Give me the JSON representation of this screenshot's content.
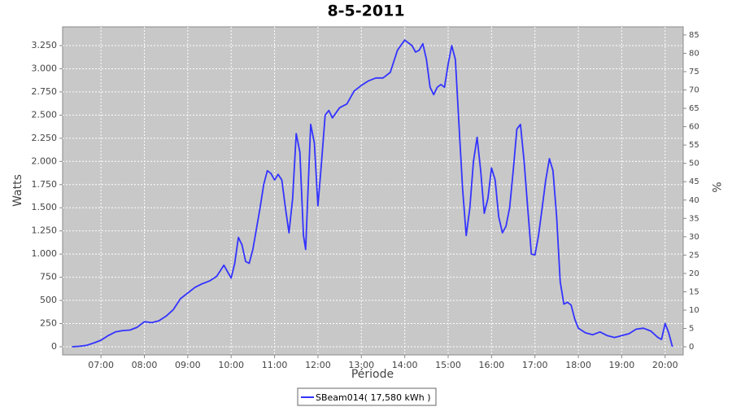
{
  "chart_data": {
    "type": "line",
    "title": "8-5-2011",
    "x_label": "Période",
    "y_label": "Watts",
    "y2_label": "%",
    "x": [
      "06:20",
      "06:30",
      "06:40",
      "06:50",
      "07:00",
      "07:10",
      "07:20",
      "07:30",
      "07:40",
      "07:50",
      "08:00",
      "08:10",
      "08:20",
      "08:30",
      "08:40",
      "08:50",
      "09:00",
      "09:10",
      "09:20",
      "09:30",
      "09:40",
      "09:50",
      "10:00",
      "10:05",
      "10:10",
      "10:15",
      "10:20",
      "10:25",
      "10:30",
      "10:40",
      "10:45",
      "10:50",
      "10:55",
      "11:00",
      "11:05",
      "11:10",
      "11:15",
      "11:20",
      "11:25",
      "11:30",
      "11:35",
      "11:40",
      "11:43",
      "11:50",
      "11:55",
      "12:00",
      "12:05",
      "12:10",
      "12:15",
      "12:20",
      "12:30",
      "12:40",
      "12:50",
      "13:00",
      "13:10",
      "13:20",
      "13:30",
      "13:40",
      "13:50",
      "14:00",
      "14:10",
      "14:15",
      "14:20",
      "14:25",
      "14:30",
      "14:35",
      "14:40",
      "14:45",
      "14:50",
      "14:55",
      "15:00",
      "15:05",
      "15:10",
      "15:15",
      "15:20",
      "15:25",
      "15:30",
      "15:35",
      "15:40",
      "15:45",
      "15:50",
      "15:55",
      "16:00",
      "16:05",
      "16:10",
      "16:15",
      "16:20",
      "16:25",
      "16:30",
      "16:35",
      "16:40",
      "16:45",
      "16:50",
      "16:55",
      "17:00",
      "17:05",
      "17:10",
      "17:15",
      "17:20",
      "17:25",
      "17:30",
      "17:35",
      "17:40",
      "17:45",
      "17:50",
      "17:55",
      "18:00",
      "18:10",
      "18:20",
      "18:30",
      "18:40",
      "18:50",
      "19:00",
      "19:10",
      "19:20",
      "19:30",
      "19:40",
      "19:50",
      "19:55",
      "20:00",
      "20:05",
      "20:10"
    ],
    "series": [
      {
        "name": "SBeam014( 17,580 kWh )",
        "color": "#3333ff",
        "values": [
          0,
          5,
          15,
          40,
          70,
          120,
          160,
          175,
          180,
          210,
          270,
          260,
          280,
          330,
          400,
          520,
          580,
          640,
          680,
          710,
          760,
          880,
          740,
          900,
          1180,
          1100,
          920,
          900,
          1050,
          1500,
          1750,
          1900,
          1870,
          1800,
          1860,
          1800,
          1500,
          1230,
          1600,
          2300,
          2100,
          1200,
          1050,
          2400,
          2200,
          1520,
          2000,
          2500,
          2550,
          2470,
          2580,
          2620,
          2760,
          2820,
          2870,
          2900,
          2900,
          2960,
          3200,
          3310,
          3250,
          3180,
          3200,
          3270,
          3100,
          2800,
          2720,
          2800,
          2830,
          2800,
          3050,
          3250,
          3100,
          2400,
          1700,
          1200,
          1500,
          2000,
          2260,
          1900,
          1440,
          1600,
          1930,
          1800,
          1400,
          1230,
          1300,
          1500,
          1900,
          2350,
          2400,
          2000,
          1500,
          1000,
          990,
          1200,
          1500,
          1800,
          2030,
          1900,
          1400,
          700,
          460,
          480,
          450,
          300,
          200,
          150,
          130,
          160,
          120,
          100,
          120,
          140,
          190,
          200,
          170,
          100,
          80,
          250,
          150,
          0
        ]
      }
    ],
    "xlim": [
      "06:07",
      "20:25"
    ],
    "xticks": [
      "07:00",
      "08:00",
      "09:00",
      "10:00",
      "11:00",
      "12:00",
      "13:00",
      "14:00",
      "15:00",
      "16:00",
      "17:00",
      "18:00",
      "19:00",
      "20:00"
    ],
    "ylim": [
      -88,
      3452
    ],
    "yticks": [
      0,
      250,
      500,
      750,
      {
        "value": 1000,
        "label": "1.000"
      },
      {
        "value": 1250,
        "label": "1.250"
      },
      {
        "value": 1500,
        "label": "1.500"
      },
      {
        "value": 1750,
        "label": "1.750"
      },
      {
        "value": 2000,
        "label": "2.000"
      },
      {
        "value": 2250,
        "label": "2.250"
      },
      {
        "value": 2500,
        "label": "2.500"
      },
      {
        "value": 2750,
        "label": "2.750"
      },
      {
        "value": 3000,
        "label": "3.000"
      },
      {
        "value": 3250,
        "label": "3.250"
      }
    ],
    "y2lim": [
      -2.2,
      87.2
    ],
    "y2ticks": [
      0,
      5,
      10,
      15,
      20,
      25,
      30,
      35,
      40,
      45,
      50,
      55,
      60,
      65,
      70,
      75,
      80,
      85
    ],
    "grid": true
  }
}
